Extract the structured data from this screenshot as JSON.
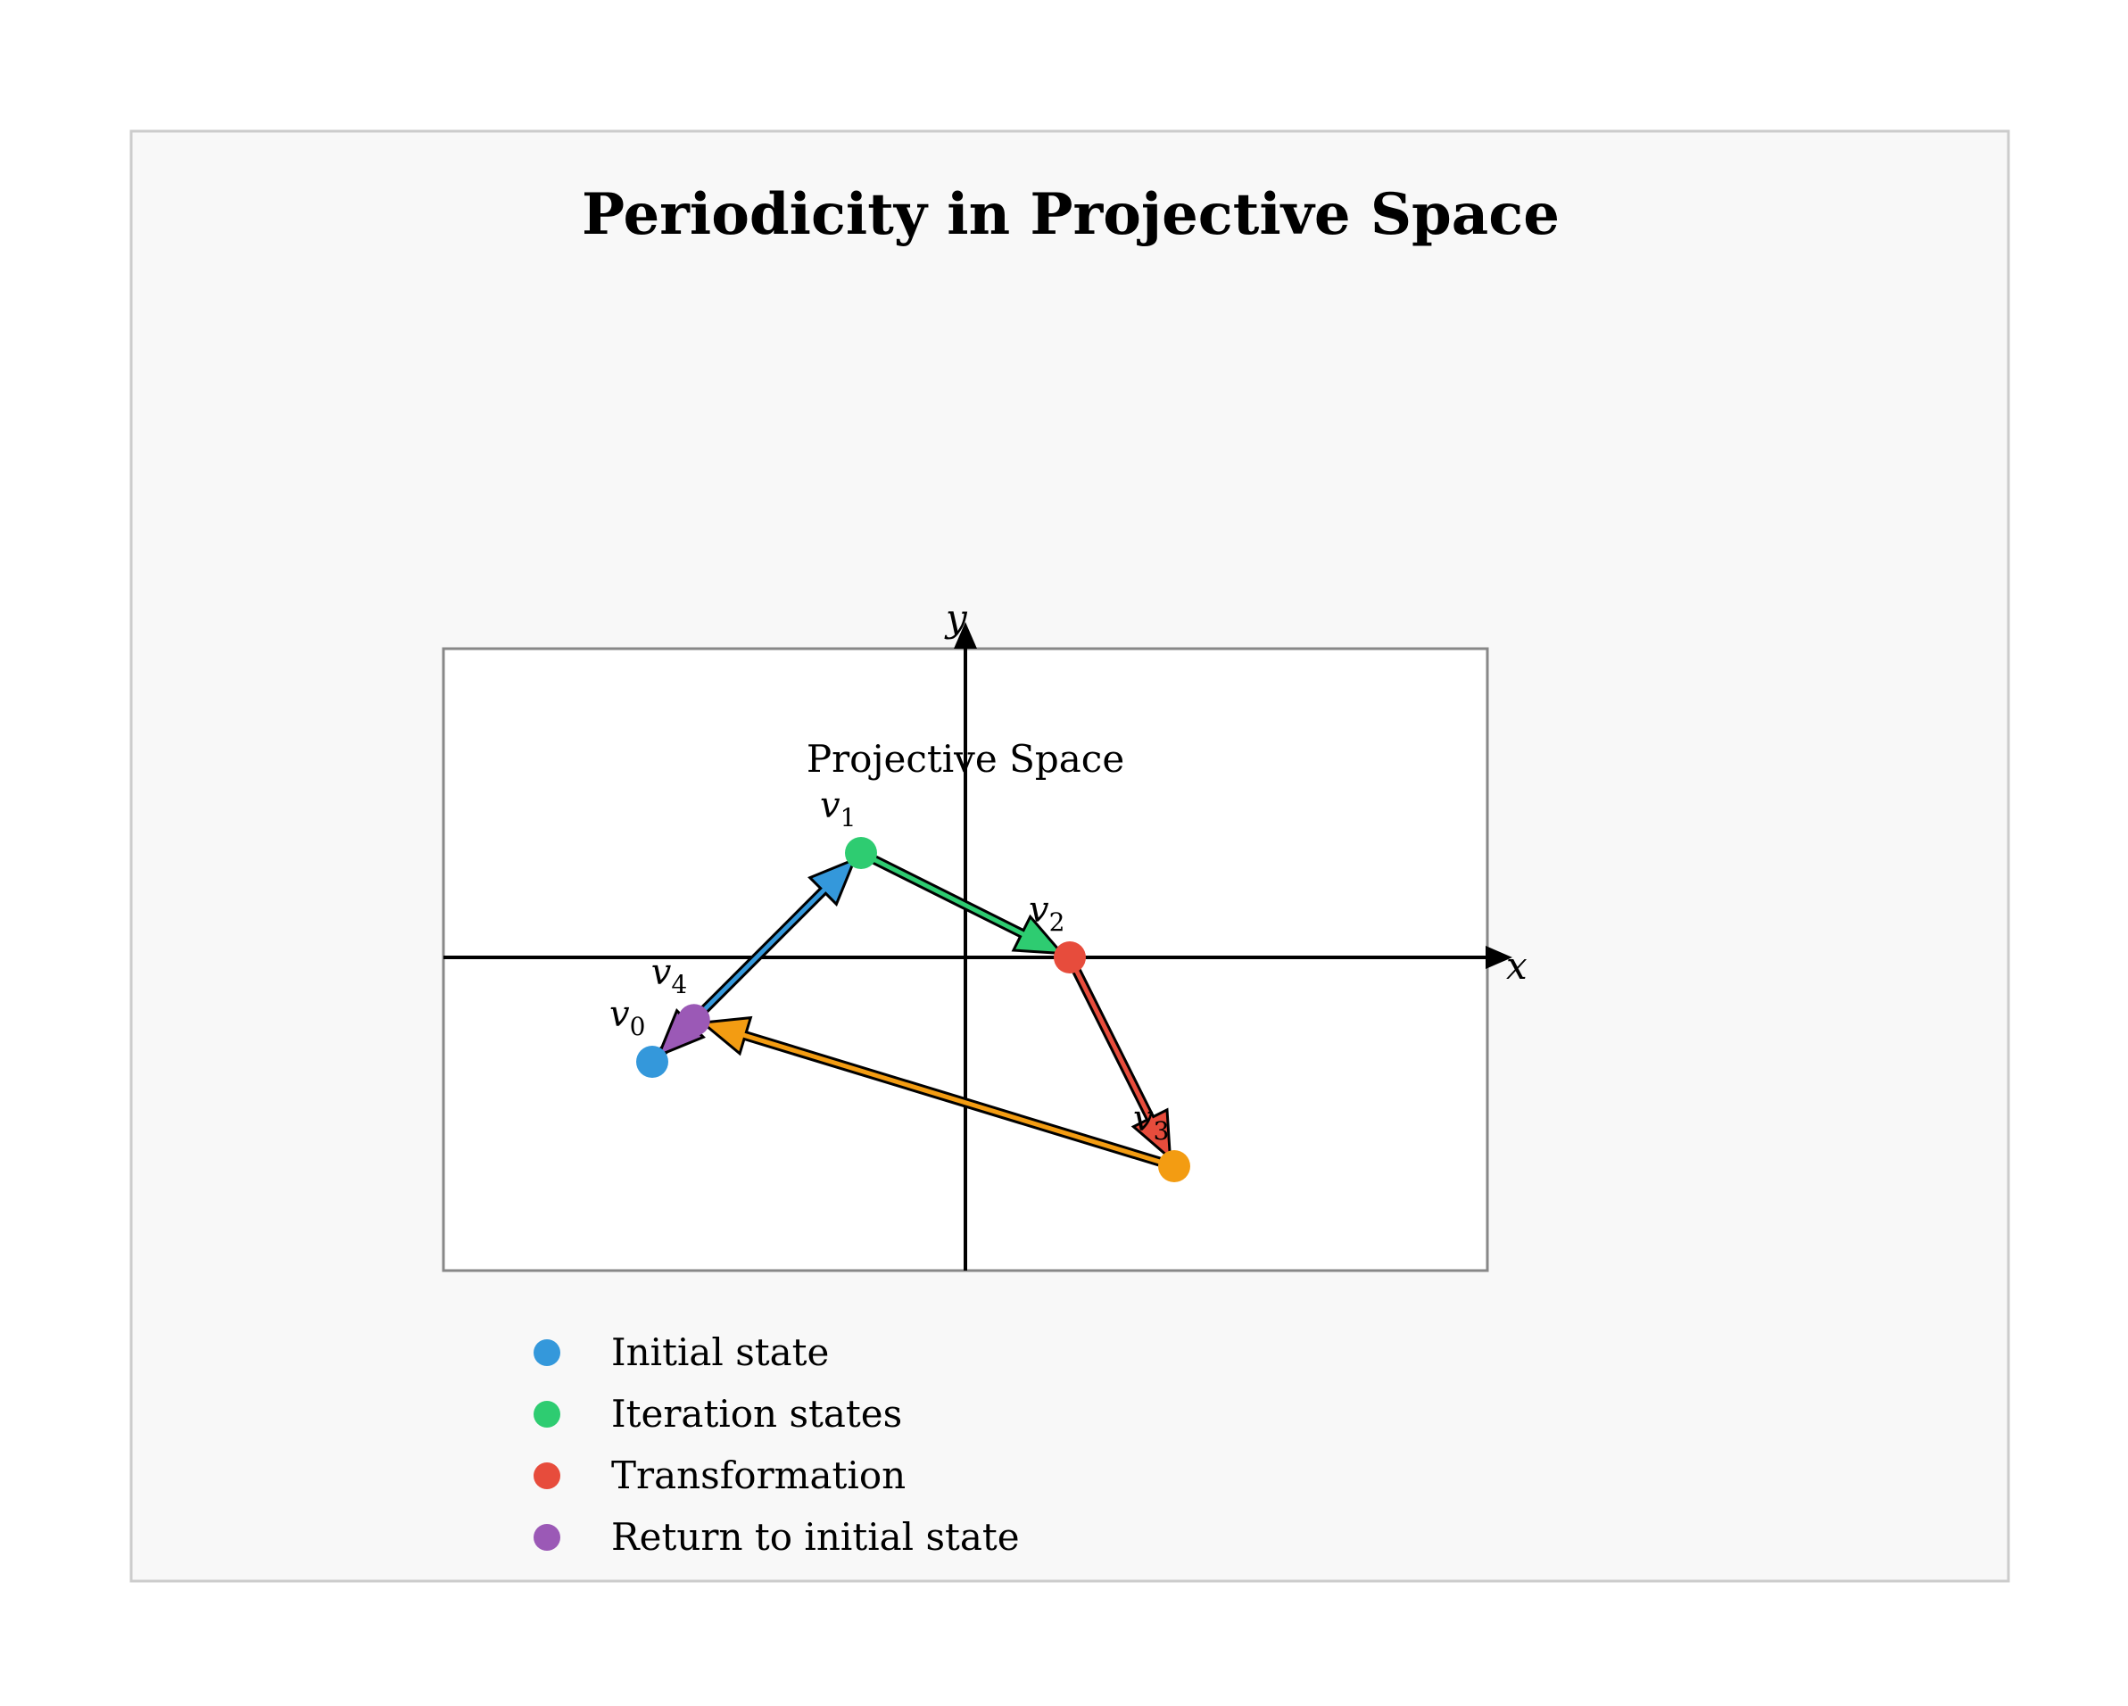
{
  "title": "Periodicity in Projective Space",
  "space_label": "Projective Space",
  "axes": {
    "x_label": "x",
    "y_label": "y"
  },
  "colors": {
    "figure_bg": "#f8f8f8",
    "figure_border": "#cccccc",
    "plot_bg": "#ffffff",
    "plot_border": "#888888",
    "axis": "#000000",
    "initial": "#3498db",
    "iteration": "#2ecc71",
    "transformation": "#e74c3c",
    "extra": "#f39c12",
    "return": "#9b59b6"
  },
  "points": [
    {
      "id": "v0",
      "base": "v",
      "sub": "0",
      "x": -3,
      "y": -1,
      "color": "#3498db"
    },
    {
      "id": "v1",
      "base": "v",
      "sub": "1",
      "x": -1,
      "y": 1,
      "color": "#2ecc71"
    },
    {
      "id": "v2",
      "base": "v",
      "sub": "2",
      "x": 1,
      "y": 0,
      "color": "#e74c3c"
    },
    {
      "id": "v3",
      "base": "v",
      "sub": "3",
      "x": 2,
      "y": -2,
      "color": "#f39c12"
    },
    {
      "id": "v4",
      "base": "v",
      "sub": "4",
      "x": -2.6,
      "y": -0.6,
      "color": "#9b59b6"
    }
  ],
  "arrows": [
    {
      "from": "v0",
      "to": "v1",
      "color": "#3498db"
    },
    {
      "from": "v1",
      "to": "v2",
      "color": "#2ecc71"
    },
    {
      "from": "v2",
      "to": "v3",
      "color": "#e74c3c"
    },
    {
      "from": "v3",
      "to": "v4",
      "color": "#f39c12"
    },
    {
      "from": "v4",
      "to": "v0",
      "color": "#9b59b6"
    }
  ],
  "legend": [
    {
      "label": "Initial state",
      "color": "#3498db"
    },
    {
      "label": "Iteration states",
      "color": "#2ecc71"
    },
    {
      "label": "Transformation",
      "color": "#e74c3c"
    },
    {
      "label": "Return to initial state",
      "color": "#9b59b6"
    }
  ]
}
